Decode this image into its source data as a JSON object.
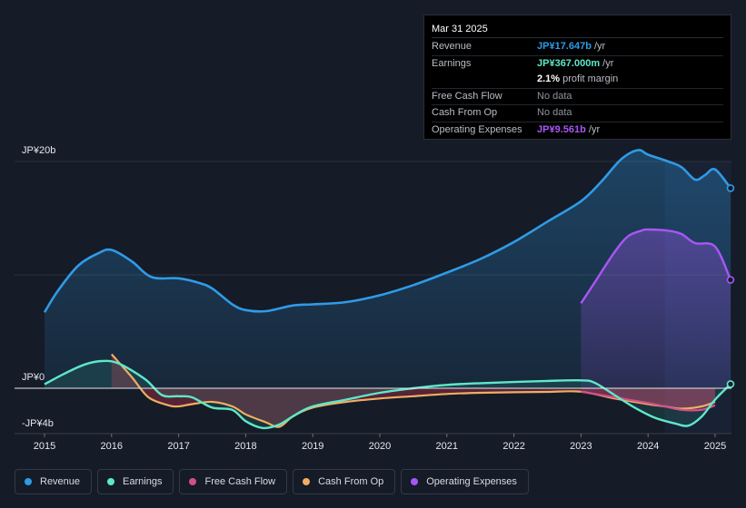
{
  "tooltip": {
    "date": "Mar 31 2025",
    "rows": [
      {
        "label": "Revenue",
        "value": "JP¥17.647b",
        "unit": " /yr"
      },
      {
        "label": "Earnings",
        "value": "JP¥367.000m",
        "unit": " /yr"
      },
      {
        "label": "",
        "value": "2.1%",
        "unit": " profit margin"
      },
      {
        "label": "Free Cash Flow",
        "value": "No data",
        "unit": ""
      },
      {
        "label": "Cash From Op",
        "value": "No data",
        "unit": ""
      },
      {
        "label": "Operating Expenses",
        "value": "JP¥9.561b",
        "unit": " /yr"
      }
    ]
  },
  "legend": {
    "revenue": "Revenue",
    "earnings": "Earnings",
    "fcf": "Free Cash Flow",
    "cfo": "Cash From Op",
    "opex": "Operating Expenses"
  },
  "colors": {
    "revenue": "#2f9be6",
    "earnings": "#5ee8c9",
    "fcf": "#d1508a",
    "cfo": "#f0ad62",
    "opex": "#a856f5",
    "background": "#151b27"
  },
  "chart_data": {
    "type": "line",
    "title": "",
    "xlabel": "",
    "ylabel": "",
    "y_tick_labels": [
      "JP¥20b",
      "JP¥0",
      "-JP¥4b"
    ],
    "x_tick_labels": [
      "2015",
      "2016",
      "2017",
      "2018",
      "2019",
      "2020",
      "2021",
      "2022",
      "2023",
      "2024",
      "2025"
    ],
    "xlim": [
      2014.55,
      2025.23
    ],
    "ylim": [
      -4,
      20
    ],
    "forecast_start": 2024.25,
    "series": [
      {
        "name": "Revenue",
        "key": "revenue",
        "x": [
          2015.0,
          2015.2,
          2015.5,
          2015.8,
          2016.0,
          2016.3,
          2016.6,
          2017.0,
          2017.3,
          2017.5,
          2017.8,
          2018.0,
          2018.3,
          2018.7,
          2019.0,
          2019.5,
          2020.0,
          2020.5,
          2021.0,
          2021.5,
          2022.0,
          2022.5,
          2023.0,
          2023.3,
          2023.6,
          2023.85,
          2024.0,
          2024.3,
          2024.5,
          2024.7,
          2024.85,
          2025.0,
          2025.23
        ],
        "values": [
          6.7,
          8.6,
          10.8,
          11.9,
          12.2,
          11.2,
          9.8,
          9.7,
          9.3,
          8.8,
          7.4,
          6.9,
          6.8,
          7.3,
          7.4,
          7.6,
          8.2,
          9.1,
          10.2,
          11.4,
          12.9,
          14.7,
          16.5,
          18.2,
          20.2,
          21.0,
          20.6,
          20.0,
          19.5,
          18.4,
          18.8,
          19.3,
          17.647
        ]
      },
      {
        "name": "Earnings",
        "key": "earnings",
        "x": [
          2015.0,
          2015.3,
          2015.6,
          2015.85,
          2016.1,
          2016.5,
          2016.75,
          2017.0,
          2017.2,
          2017.5,
          2017.8,
          2018.0,
          2018.25,
          2018.5,
          2018.75,
          2019.0,
          2019.5,
          2020.0,
          2020.5,
          2021.0,
          2021.5,
          2022.0,
          2022.5,
          2023.0,
          2023.2,
          2023.5,
          2023.8,
          2024.1,
          2024.4,
          2024.6,
          2024.8,
          2025.0,
          2025.23
        ],
        "values": [
          0.35,
          1.3,
          2.1,
          2.4,
          2.2,
          0.8,
          -0.6,
          -0.7,
          -0.8,
          -1.7,
          -1.9,
          -2.9,
          -3.5,
          -3.2,
          -2.3,
          -1.6,
          -1.0,
          -0.4,
          0.0,
          0.3,
          0.45,
          0.55,
          0.65,
          0.7,
          0.5,
          -0.6,
          -1.7,
          -2.6,
          -3.1,
          -3.3,
          -2.5,
          -1.0,
          0.367
        ]
      },
      {
        "name": "Cash From Op",
        "key": "cfo",
        "x": [
          2016.0,
          2016.3,
          2016.55,
          2016.85,
          2017.0,
          2017.2,
          2017.5,
          2017.8,
          2018.0,
          2018.3,
          2018.5,
          2018.7,
          2019.0,
          2019.5,
          2020.0,
          2020.5,
          2021.0,
          2021.5,
          2022.0,
          2022.5,
          2023.0,
          2023.5,
          2024.0,
          2024.25,
          2024.5,
          2024.8,
          2025.0
        ],
        "values": [
          3.0,
          1.0,
          -0.8,
          -1.5,
          -1.6,
          -1.4,
          -1.2,
          -1.6,
          -2.3,
          -3.0,
          -3.4,
          -2.5,
          -1.7,
          -1.2,
          -0.9,
          -0.7,
          -0.5,
          -0.4,
          -0.35,
          -0.32,
          -0.3,
          -0.9,
          -1.4,
          -1.6,
          -1.8,
          -1.6,
          -1.2
        ]
      },
      {
        "name": "Free Cash Flow",
        "key": "fcf",
        "x": [
          2023.0,
          2023.5,
          2024.0,
          2024.25,
          2024.5,
          2024.8,
          2025.0
        ],
        "values": [
          -0.3,
          -0.8,
          -1.3,
          -1.6,
          -1.9,
          -1.9,
          -1.5
        ]
      },
      {
        "name": "Operating Expenses",
        "key": "opex",
        "x": [
          2023.0,
          2023.2,
          2023.5,
          2023.7,
          2023.9,
          2024.0,
          2024.3,
          2024.5,
          2024.7,
          2025.0,
          2025.23
        ],
        "values": [
          7.5,
          9.3,
          12.0,
          13.4,
          13.9,
          14.0,
          13.9,
          13.6,
          12.8,
          12.5,
          9.561
        ]
      }
    ]
  }
}
